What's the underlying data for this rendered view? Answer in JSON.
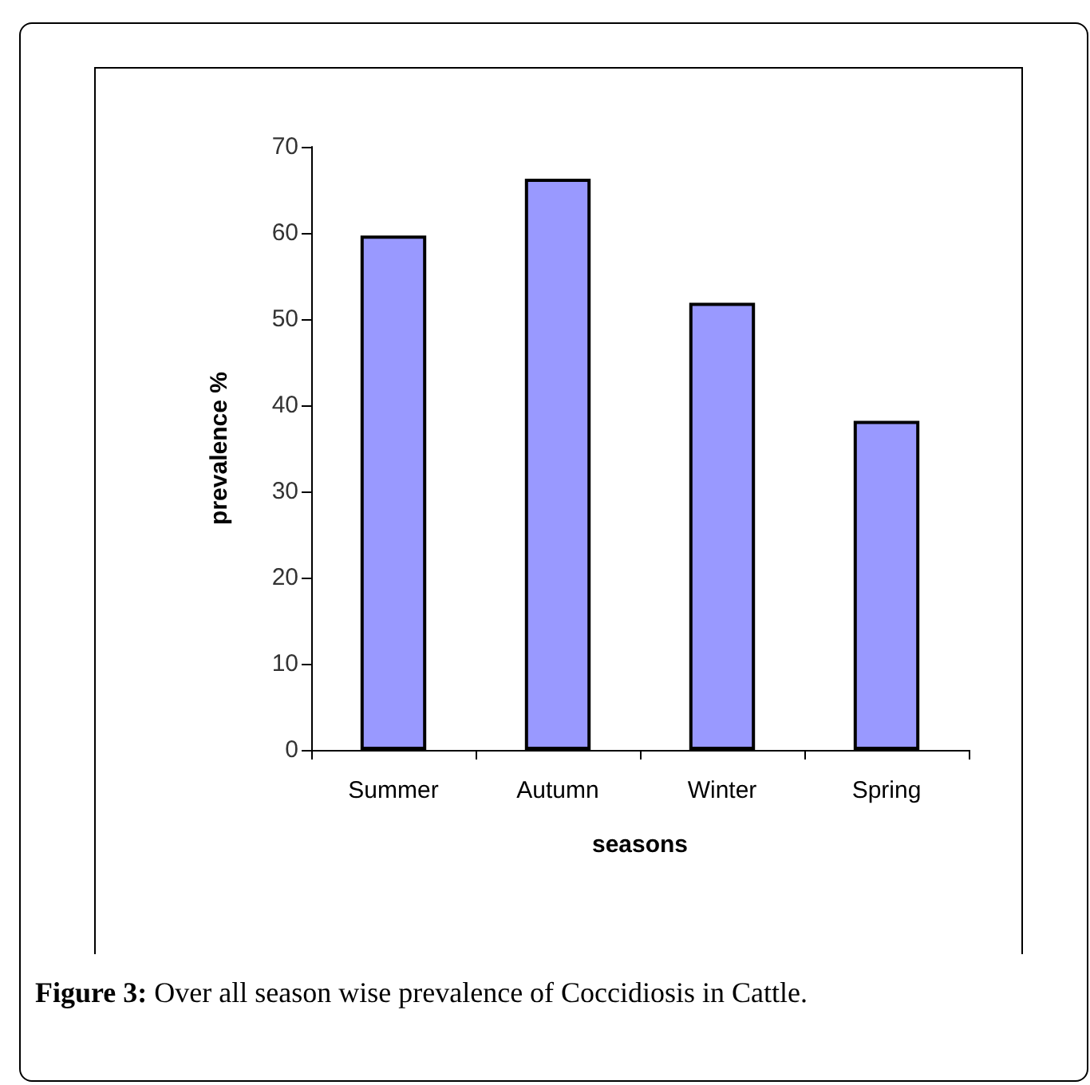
{
  "chart_data": {
    "type": "bar",
    "xlabel": "seasons",
    "ylabel": "prevalence %",
    "categories": [
      "Summer",
      "Autumn",
      "Winter",
      "Spring"
    ],
    "values": [
      59.7,
      66.3,
      51.9,
      38.2
    ],
    "color": "#9999ff",
    "ylim": [
      0,
      70
    ],
    "yticks": [
      0,
      10,
      20,
      30,
      40,
      50,
      60,
      70
    ],
    "grid": false,
    "annotations": [
      "Figure 3: Over all season wise prevalence of Coccidiosis in Cattle."
    ]
  }
}
